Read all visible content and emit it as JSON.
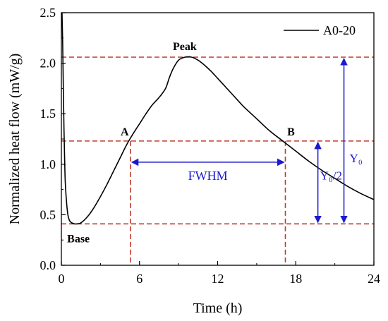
{
  "chart_data": {
    "type": "line",
    "xlabel": "Time (h)",
    "ylabel": "Normalized heat flow (mW/g)",
    "xlim": [
      0,
      24
    ],
    "ylim": [
      0,
      2.5
    ],
    "x_ticks": [
      0,
      6,
      12,
      18,
      24
    ],
    "x_tick_labels": [
      "0",
      "6",
      "12",
      "18",
      "24"
    ],
    "y_ticks": [
      0.0,
      0.5,
      1.0,
      1.5,
      2.0,
      2.5
    ],
    "y_tick_labels": [
      "0.0",
      "0.5",
      "1.0",
      "1.5",
      "2.0",
      "2.5"
    ],
    "grid": false,
    "legend": {
      "position": "top-right",
      "entries": [
        "A0-20"
      ]
    },
    "series": [
      {
        "name": "A0-20",
        "color": "#000000",
        "x": [
          0.05,
          0.1,
          0.15,
          0.2,
          0.25,
          0.3,
          0.4,
          0.5,
          0.6,
          0.7,
          0.8,
          1.0,
          1.2,
          1.5,
          2.0,
          2.5,
          3.0,
          3.5,
          4.0,
          4.5,
          5.0,
          5.5,
          6.0,
          6.5,
          7.0,
          7.5,
          8.0,
          8.3,
          8.6,
          9.0,
          9.5,
          10.0,
          10.5,
          11.0,
          11.5,
          12.0,
          12.5,
          13.0,
          13.5,
          14.0,
          15.0,
          16.0,
          17.0,
          18.0,
          19.0,
          20.0,
          21.0,
          22.0,
          23.0,
          24.0
        ],
        "y": [
          2.5,
          2.2,
          1.75,
          1.35,
          1.05,
          0.82,
          0.62,
          0.5,
          0.45,
          0.43,
          0.42,
          0.41,
          0.41,
          0.42,
          0.48,
          0.57,
          0.68,
          0.8,
          0.93,
          1.06,
          1.19,
          1.3,
          1.4,
          1.5,
          1.59,
          1.66,
          1.75,
          1.86,
          1.95,
          2.03,
          2.06,
          2.06,
          2.03,
          1.98,
          1.92,
          1.85,
          1.78,
          1.71,
          1.64,
          1.57,
          1.45,
          1.33,
          1.23,
          1.13,
          1.03,
          0.94,
          0.86,
          0.78,
          0.71,
          0.65
        ]
      }
    ],
    "reference_lines": {
      "color": "#c0392b",
      "horizontal": [
        2.06,
        1.23,
        0.41
      ],
      "vertical": [
        5.3,
        17.2
      ]
    },
    "annotations": {
      "color": "#1a1acc",
      "peak_label": "Peak",
      "base_label": "Base",
      "point_a_label": "A",
      "point_b_label": "B",
      "fwhm_label": "FWHM",
      "half_height_label": "Y₀/2",
      "height_label": "Y₀",
      "fwhm_arrow": {
        "from_x": 5.3,
        "to_x": 17.2,
        "y": 1.02
      },
      "half_height_arrow": {
        "x": 19.7,
        "from_y": 0.41,
        "to_y": 1.23
      },
      "height_arrow": {
        "x": 21.7,
        "from_y": 0.41,
        "to_y": 2.06
      },
      "peak_point": {
        "x": 9.8,
        "y": 2.06
      },
      "base_point": {
        "x": 1.2,
        "y": 0.41
      },
      "point_a": {
        "x": 5.3,
        "y": 1.23
      },
      "point_b": {
        "x": 17.2,
        "y": 1.23
      }
    }
  }
}
